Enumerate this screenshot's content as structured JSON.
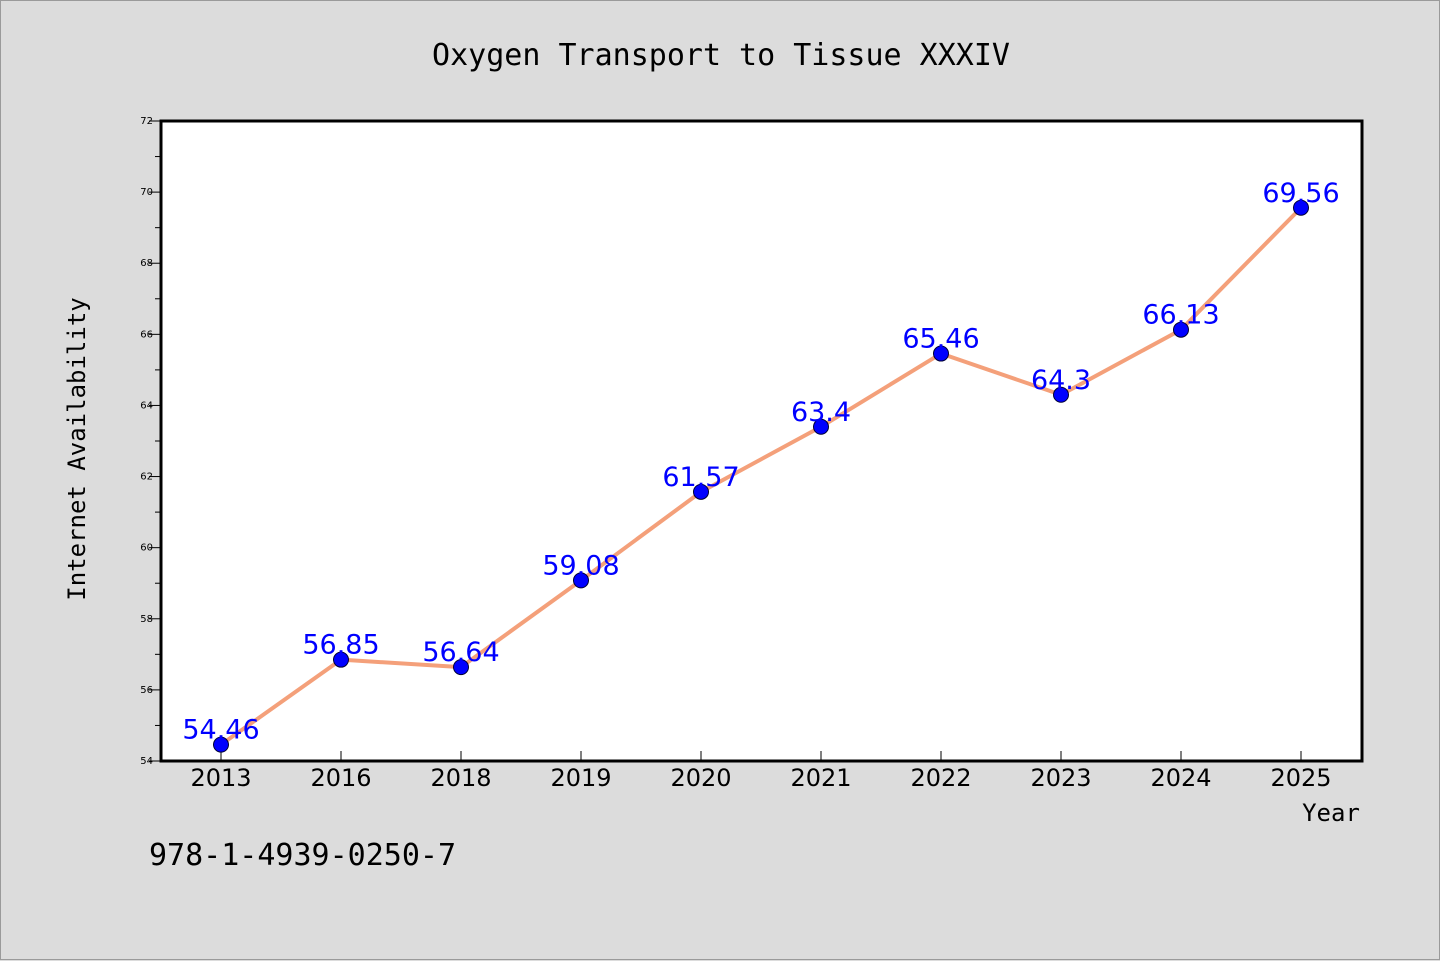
{
  "chart_data": {
    "type": "line",
    "title": "Oxygen Transport to Tissue XXXIV",
    "xlabel": "Year",
    "ylabel": "Internet Availability",
    "categories": [
      "2013",
      "2016",
      "2018",
      "2019",
      "2020",
      "2021",
      "2022",
      "2023",
      "2024",
      "2025"
    ],
    "series": [
      {
        "values": [
          54.46,
          56.85,
          56.64,
          59.08,
          61.57,
          63.4,
          65.46,
          64.3,
          66.13,
          69.56
        ]
      }
    ],
    "data_labels": [
      "54.46",
      "56.85",
      "56.64",
      "59.08",
      "61.57",
      "63.4",
      "65.46",
      "64.3",
      "66.13",
      "69.56"
    ],
    "ylim": [
      54,
      72
    ],
    "yticks": [
      54,
      56,
      58,
      60,
      62,
      64,
      66,
      68,
      70,
      72
    ],
    "grid": false,
    "line_color": "#f4a07a",
    "marker_color": "#0000ff",
    "label_color": "#0000ff"
  },
  "footer": {
    "isbn": "978-1-4939-0250-7"
  }
}
